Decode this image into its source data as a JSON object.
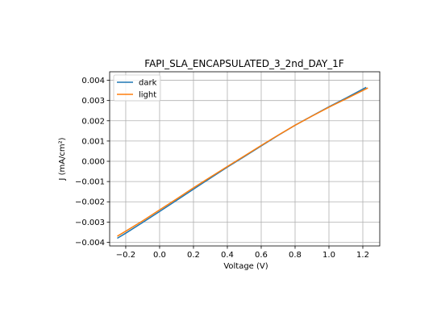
{
  "chart_data": {
    "type": "line",
    "title": "FAPI_SLA_ENCAPSULATED_3_2nd_DAY_1F",
    "xlabel": "Voltage (V)",
    "ylabel": "J (mA/cm²)",
    "xlim": [
      -0.295,
      1.3
    ],
    "ylim": [
      -0.00418,
      0.00442
    ],
    "x_ticks": [
      -0.2,
      0.0,
      0.2,
      0.4,
      0.6,
      0.8,
      1.0,
      1.2
    ],
    "x_tick_labels": [
      "−0.2",
      "0.0",
      "0.2",
      "0.4",
      "0.6",
      "0.8",
      "1.0",
      "1.2"
    ],
    "y_ticks": [
      -0.004,
      -0.003,
      -0.002,
      -0.001,
      0.0,
      0.001,
      0.002,
      0.003,
      0.004
    ],
    "y_tick_labels": [
      "−0.004",
      "−0.003",
      "−0.002",
      "−0.001",
      "0.000",
      "0.001",
      "0.002",
      "0.003",
      "0.004"
    ],
    "grid": true,
    "legend_position": "top-left",
    "series": [
      {
        "name": "dark",
        "color": "#1f77b4",
        "x": [
          -0.25,
          -0.2,
          -0.1,
          0.0,
          0.1,
          0.2,
          0.3,
          0.4,
          0.5,
          0.6,
          0.7,
          0.8,
          0.9,
          1.0,
          1.1,
          1.22
        ],
        "y": [
          -0.0038,
          -0.00355,
          -0.00302,
          -0.00248,
          -0.00193,
          -0.00138,
          -0.00083,
          -0.00029,
          0.00023,
          0.00076,
          0.00128,
          0.00178,
          0.00224,
          0.00269,
          0.00312,
          0.00365
        ]
      },
      {
        "name": "light",
        "color": "#ff7f0e",
        "x": [
          -0.25,
          -0.2,
          -0.1,
          0.0,
          0.1,
          0.2,
          0.3,
          0.4,
          0.5,
          0.6,
          0.7,
          0.8,
          0.9,
          1.0,
          1.1,
          1.23
        ],
        "y": [
          -0.0037,
          -0.00345,
          -0.00294,
          -0.0024,
          -0.00186,
          -0.00131,
          -0.00078,
          -0.00026,
          0.00026,
          0.00078,
          0.00129,
          0.00178,
          0.00223,
          0.00267,
          0.00308,
          0.00362
        ]
      }
    ]
  }
}
